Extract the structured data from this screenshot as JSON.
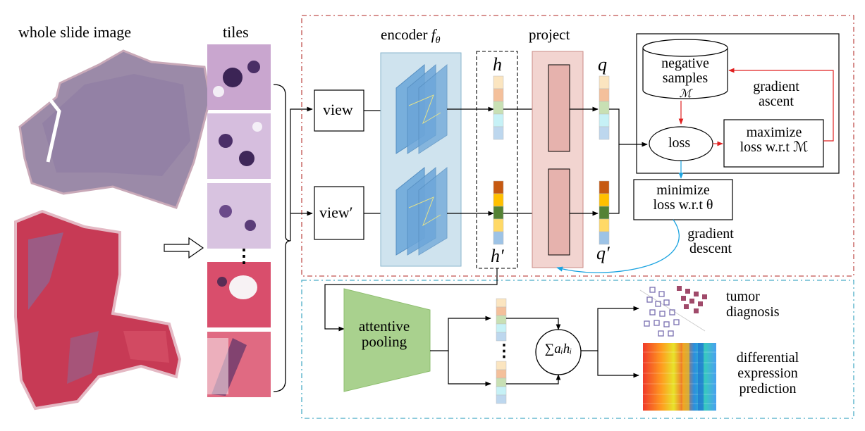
{
  "inputs": {
    "wsi_title": "whole slide image",
    "tiles_title": "tiles",
    "tile_ellipsis": "⋮"
  },
  "contrastive": {
    "view": "view",
    "view_prime": "view′",
    "encoder_label": "encoder",
    "encoder_symbol": "f",
    "encoder_subscript": "θ",
    "project_label": "project",
    "h": "h",
    "h_prime": "h′",
    "q": "q",
    "q_prime": "q′",
    "negative_samples": "negative samples",
    "memory_symbol": "ℳ",
    "loss": "loss",
    "maximize_line1": "maximize",
    "maximize_line2": "loss w.r.t ℳ",
    "gradient_ascent": "gradient ascent",
    "minimize_line1": "minimize",
    "minimize_line2": "loss w.r.t θ",
    "gradient_descent": "gradient descent"
  },
  "downstream": {
    "attentive_pooling": "attentive pooling",
    "ellipsis": "⋮",
    "weighted_sum": "∑aᵢhᵢ",
    "tumor_diagnosis": "tumor diagnosis",
    "differential_expression": "differential expression prediction"
  },
  "colors": {
    "encoder_fill": "#cfe3ee",
    "encoder_layers": "#5b9bd5",
    "project_fill": "#f2d4d0",
    "project_inner": "#e6b2ad",
    "pooling_fill": "#a9d18e",
    "upper_border": "#c0504d",
    "lower_border": "#4aacc6",
    "ascent_arrow": "#e02020",
    "descent_arrow": "#1aa3e0",
    "vector_top": [
      "#fbe5c0",
      "#f4c09b",
      "#c8e0b4",
      "#c6f1f6",
      "#bdd7ee"
    ],
    "vector_bottom": [
      "#c65911",
      "#ffc000",
      "#548235",
      "#ffd966",
      "#9dc3e6"
    ]
  }
}
